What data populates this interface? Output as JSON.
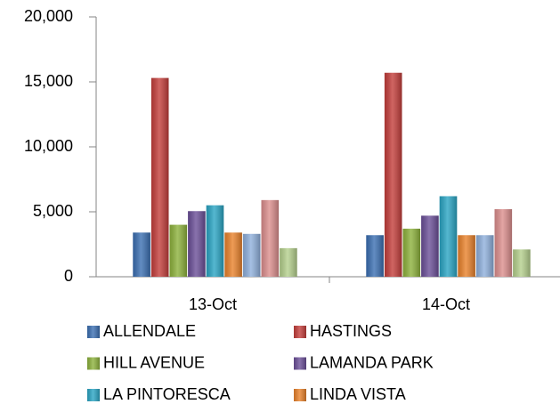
{
  "chart_data": {
    "type": "bar",
    "categories": [
      "13-Oct",
      "14-Oct"
    ],
    "series": [
      {
        "name": "ALLENDALE",
        "color": "#3b6fb2",
        "values": [
          3400,
          3200
        ]
      },
      {
        "name": "HASTINGS",
        "color": "#c43e3b",
        "values": [
          15300,
          15700
        ]
      },
      {
        "name": "HILL AVENUE",
        "color": "#8db23c",
        "values": [
          4000,
          3700
        ]
      },
      {
        "name": "LAMANDA PARK",
        "color": "#6b4f98",
        "values": [
          5050,
          4700
        ]
      },
      {
        "name": "LA PINTORESCA",
        "color": "#2aa5c4",
        "values": [
          5500,
          6200
        ]
      },
      {
        "name": "LINDA VISTA",
        "color": "#e9822b",
        "values": [
          3400,
          3200
        ]
      },
      {
        "name": null,
        "color": "#8fb0dc",
        "values": [
          3300,
          3200
        ]
      },
      {
        "name": null,
        "color": "#dc8e8d",
        "values": [
          5900,
          5200
        ]
      },
      {
        "name": null,
        "color": "#b5d08d",
        "values": [
          2200,
          2100
        ]
      }
    ],
    "ylim": [
      0,
      20000
    ],
    "yticks": [
      0,
      {
        "value": 5000,
        "label": "5,000"
      },
      {
        "value": 10000,
        "label": "10,000"
      },
      {
        "value": 15000,
        "label": "15,000"
      },
      {
        "value": 20000,
        "label": "20,000"
      }
    ],
    "grid": false
  }
}
